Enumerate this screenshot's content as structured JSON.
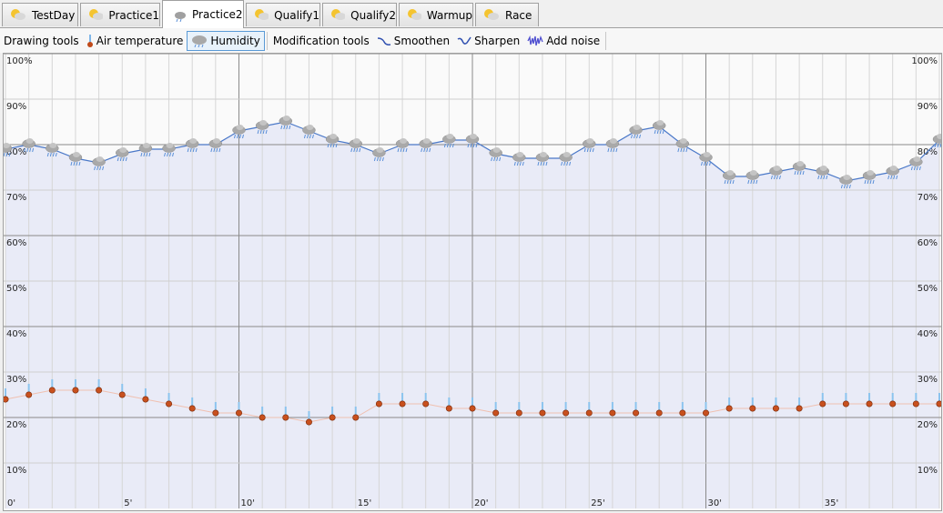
{
  "tabs": [
    "TestDay",
    "Practice1",
    "Practice2",
    "Qualify1",
    "Qualify2",
    "Warmup",
    "Race"
  ],
  "toolbar": {
    "drawing_label": "Drawing tools",
    "modification_label": "Modification tools",
    "modification_tools": [
      "Smoothen",
      "Sharpen",
      "Add noise"
    ]
  },
  "chart_data": {
    "type": "line",
    "x": [
      0,
      1,
      2,
      3,
      4,
      5,
      6,
      7,
      8,
      9,
      10,
      11,
      12,
      13,
      14,
      15,
      16,
      17,
      18,
      19,
      20,
      21,
      22,
      23,
      24,
      25,
      26,
      27,
      28,
      29,
      30,
      31,
      32,
      33,
      34,
      35,
      36,
      37,
      38,
      39,
      40
    ],
    "series": [
      {
        "name": "Humidity",
        "color": "#4a78c8",
        "values": [
          79,
          80,
          79,
          77,
          76,
          78,
          79,
          79,
          80,
          80,
          83,
          84,
          85,
          83,
          81,
          80,
          78,
          80,
          80,
          81,
          81,
          78,
          77,
          77,
          77,
          80,
          80,
          83,
          84,
          80,
          77,
          73,
          73,
          74,
          75,
          74,
          72,
          73,
          74,
          76,
          81
        ]
      },
      {
        "name": "Air temperature",
        "color": "#f0c0b0",
        "values": [
          24,
          25,
          26,
          26,
          26,
          25,
          24,
          23,
          22,
          21,
          21,
          20,
          20,
          19,
          20,
          20,
          23,
          23,
          23,
          22,
          22,
          21,
          21,
          21,
          21,
          21,
          21,
          21,
          21,
          21,
          21,
          22,
          22,
          22,
          22,
          23,
          23,
          23,
          23,
          23,
          23
        ]
      }
    ],
    "xlim": [
      0,
      40
    ],
    "xticks": [
      {
        "value": 0,
        "label": "0'"
      },
      {
        "value": 5,
        "label": "5'"
      },
      {
        "value": 10,
        "label": "10'"
      },
      {
        "value": 15,
        "label": "15'"
      },
      {
        "value": 20,
        "label": "20'"
      },
      {
        "value": 25,
        "label": "25'"
      },
      {
        "value": 30,
        "label": "30'"
      },
      {
        "value": 35,
        "label": "35'"
      }
    ],
    "ylim": [
      0,
      100
    ],
    "yticks": [
      {
        "value": 10,
        "label": "10%"
      },
      {
        "value": 20,
        "label": "20%"
      },
      {
        "value": 30,
        "label": "30%"
      },
      {
        "value": 40,
        "label": "40%"
      },
      {
        "value": 50,
        "label": "50%"
      },
      {
        "value": 60,
        "label": "60%"
      },
      {
        "value": 70,
        "label": "70%"
      },
      {
        "value": 80,
        "label": "80%"
      },
      {
        "value": 90,
        "label": "90%"
      },
      {
        "value": 100,
        "label": "100%"
      }
    ],
    "grid": true
  }
}
